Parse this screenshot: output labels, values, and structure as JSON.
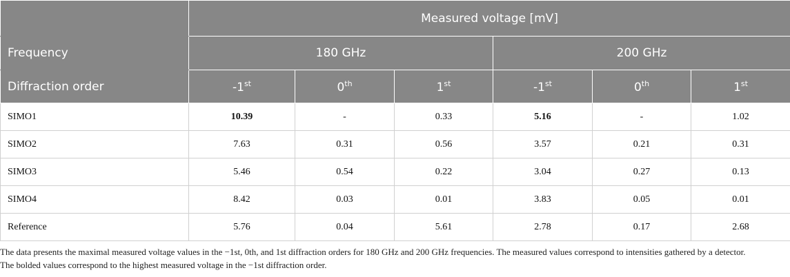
{
  "table": {
    "header": {
      "group": "Measured voltage [mV]",
      "frequency_label": "Frequency",
      "frequencies": [
        "180 GHz",
        "200 GHz"
      ],
      "order_label": "Diffraction order",
      "orders": [
        {
          "base": "-1",
          "sup": "st"
        },
        {
          "base": "0",
          "sup": "th"
        },
        {
          "base": "1",
          "sup": "st"
        },
        {
          "base": "-1",
          "sup": "st"
        },
        {
          "base": "0",
          "sup": "th"
        },
        {
          "base": "1",
          "sup": "st"
        }
      ]
    },
    "rows": [
      [
        "SIMO1",
        "10.39",
        "-",
        "0.33",
        "5.16",
        "-",
        "1.02"
      ],
      [
        "SIMO2",
        "7.63",
        "0.31",
        "0.56",
        "3.57",
        "0.21",
        "0.31"
      ],
      [
        "SIMO3",
        "5.46",
        "0.54",
        "0.22",
        "3.04",
        "0.27",
        "0.13"
      ],
      [
        "SIMO4",
        "8.42",
        "0.03",
        "0.01",
        "3.83",
        "0.05",
        "0.01"
      ],
      [
        "Reference",
        "5.76",
        "0.04",
        "5.61",
        "2.78",
        "0.17",
        "2.68"
      ]
    ],
    "notes": [
      "The data presents the maximal measured voltage values in the −1st, 0th, and 1st diffraction orders for 180 GHz and 200 GHz frequencies. The measured values correspond to intensities gathered by a detector.",
      "The bolded values correspond to the highest measured voltage in the −1st diffraction order."
    ]
  }
}
